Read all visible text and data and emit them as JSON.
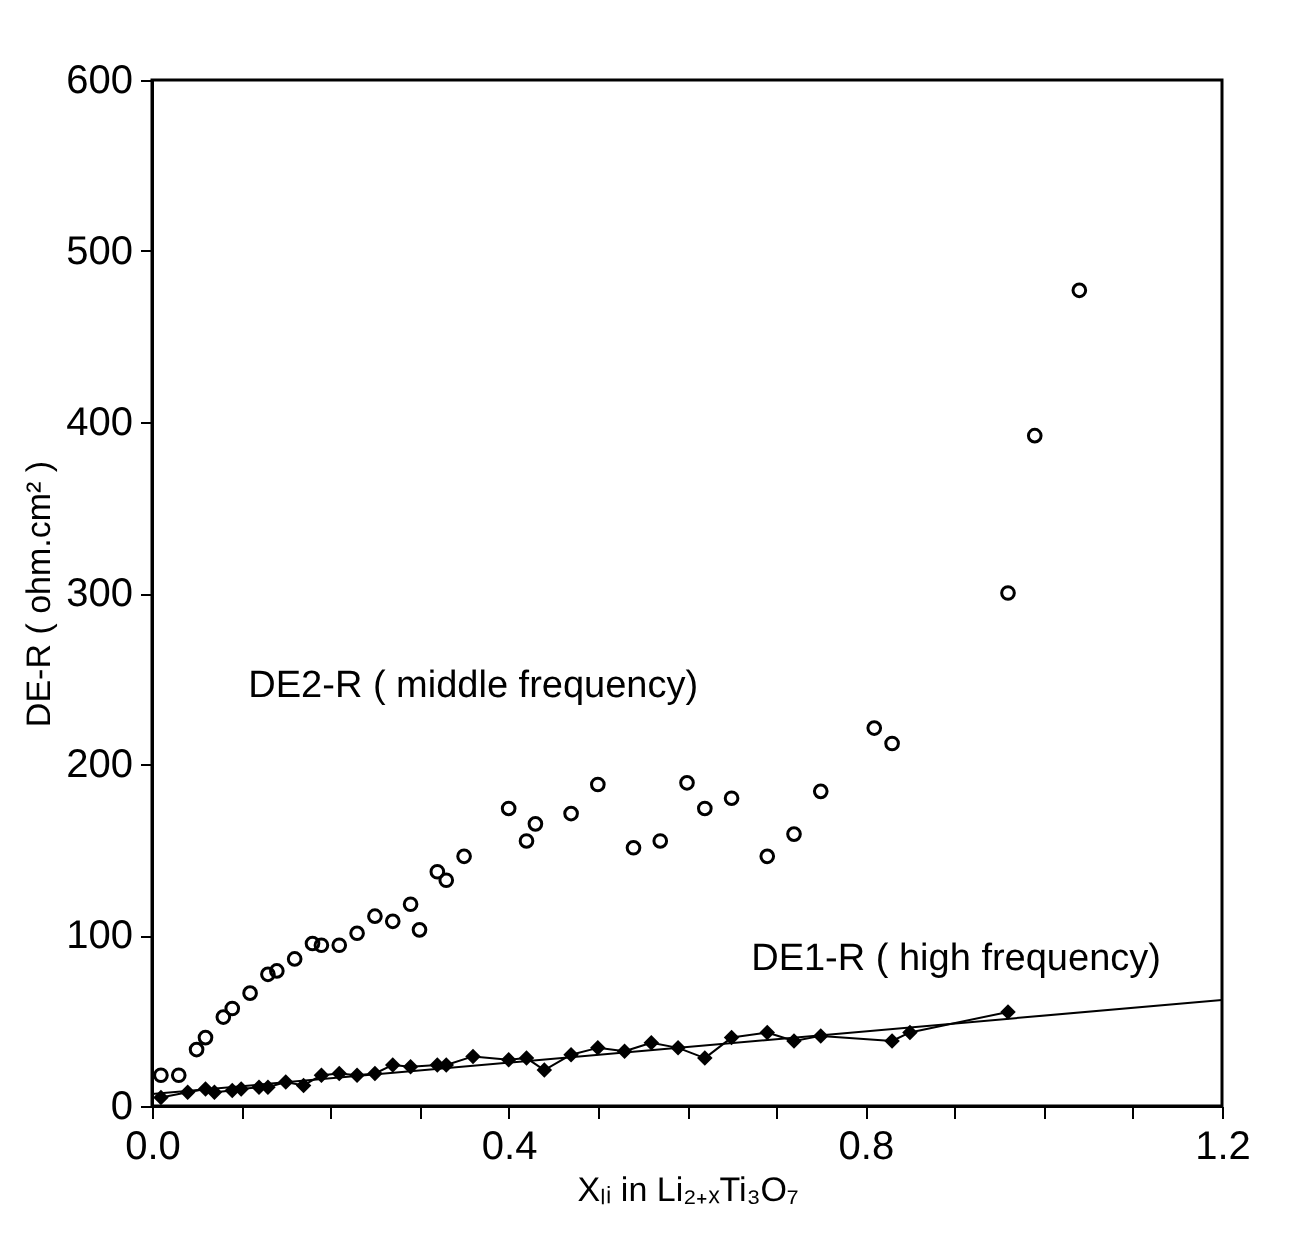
{
  "chart_data": {
    "type": "scatter",
    "xlabel": "Xₗᵢ in Li₂₊ₓTi₃O₇",
    "ylabel": "DE-R ( ohm.cm² )",
    "xlim": [
      0,
      1.2
    ],
    "ylim": [
      0,
      600
    ],
    "xticks": [
      {
        "value": 0.0,
        "label": "0.0"
      },
      {
        "value": 0.1,
        "label": null
      },
      {
        "value": 0.2,
        "label": null
      },
      {
        "value": 0.3,
        "label": null
      },
      {
        "value": 0.4,
        "label": "0.4"
      },
      {
        "value": 0.5,
        "label": null
      },
      {
        "value": 0.6,
        "label": null
      },
      {
        "value": 0.7,
        "label": null
      },
      {
        "value": 0.8,
        "label": "0.8"
      },
      {
        "value": 0.9,
        "label": null
      },
      {
        "value": 1.0,
        "label": null
      },
      {
        "value": 1.1,
        "label": null
      },
      {
        "value": 1.2,
        "label": "1.2"
      }
    ],
    "yticks": [
      0,
      100,
      200,
      300,
      400,
      500,
      600
    ],
    "grid": false,
    "line_style": "solid",
    "series": [
      {
        "name": "DE2-R ( middle frequency)",
        "marker": "circle",
        "color": "#000000",
        "x": [
          0.01,
          0.03,
          0.05,
          0.06,
          0.08,
          0.09,
          0.11,
          0.13,
          0.14,
          0.16,
          0.18,
          0.19,
          0.21,
          0.23,
          0.25,
          0.27,
          0.29,
          0.3,
          0.32,
          0.33,
          0.35,
          0.4,
          0.42,
          0.43,
          0.47,
          0.5,
          0.54,
          0.57,
          0.6,
          0.62,
          0.65,
          0.69,
          0.72,
          0.75,
          0.81,
          0.83,
          0.96,
          0.99,
          1.04
        ],
        "values": [
          18,
          18,
          33,
          40,
          52,
          57,
          66,
          77,
          79,
          86,
          95,
          94,
          94,
          101,
          111,
          108,
          118,
          103,
          137,
          132,
          146,
          174,
          155,
          165,
          171,
          188,
          151,
          155,
          189,
          174,
          180,
          146,
          159,
          184,
          221,
          212,
          300,
          392,
          477
        ]
      },
      {
        "name": "DE1-R ( high frequency)",
        "type": "line",
        "marker": "diamond",
        "color": "#000000",
        "x": [
          0.01,
          0.04,
          0.06,
          0.07,
          0.09,
          0.1,
          0.12,
          0.13,
          0.15,
          0.17,
          0.19,
          0.21,
          0.23,
          0.25,
          0.27,
          0.29,
          0.32,
          0.33,
          0.36,
          0.4,
          0.42,
          0.44,
          0.47,
          0.5,
          0.53,
          0.56,
          0.59,
          0.62,
          0.65,
          0.69,
          0.72,
          0.75,
          0.83,
          0.85,
          0.96
        ],
        "values": [
          5,
          8,
          10,
          8,
          9,
          10,
          11,
          11,
          14,
          12,
          18,
          19,
          18,
          19,
          24,
          23,
          24,
          24,
          29,
          27,
          28,
          21,
          30,
          34,
          32,
          37,
          34,
          28,
          40,
          43,
          38,
          41,
          38,
          43,
          55
        ]
      },
      {
        "type": "line",
        "marker": "none",
        "color": "#000000",
        "x": [
          0,
          1.2
        ],
        "values": [
          7,
          62
        ]
      }
    ]
  }
}
